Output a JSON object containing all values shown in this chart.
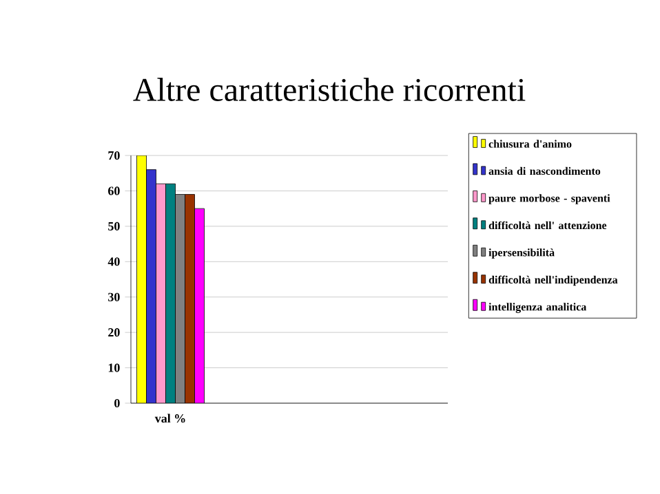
{
  "chart_data": {
    "type": "bar",
    "title": "Altre caratteristiche ricorrenti",
    "categories": [
      "val %",
      null,
      null,
      null
    ],
    "series": [
      {
        "name": "chiusura d'animo",
        "color": "#ffff00",
        "values": [
          70,
          null,
          null,
          null
        ]
      },
      {
        "name": "ansia di nascondimento",
        "color": "#3333cc",
        "values": [
          66,
          null,
          null,
          null
        ]
      },
      {
        "name": "paure morbose - spaventi",
        "color": "#ff99cc",
        "values": [
          62,
          null,
          null,
          null
        ]
      },
      {
        "name": "difficoltà nell' attenzione",
        "color": "#008080",
        "values": [
          62,
          null,
          null,
          null
        ]
      },
      {
        "name": "ipersensibilità",
        "color": "#808080",
        "values": [
          59,
          null,
          null,
          null
        ]
      },
      {
        "name": "difficoltà nell'indipendenza",
        "color": "#993300",
        "values": [
          59,
          null,
          null,
          null
        ]
      },
      {
        "name": "intelligenza analitica",
        "color": "#ff00ff",
        "values": [
          55,
          null,
          null,
          null
        ]
      }
    ],
    "ylim": [
      0,
      70
    ],
    "yticks": [
      0,
      10,
      20,
      30,
      40,
      50,
      60,
      70
    ],
    "grid": "y",
    "legend": "right"
  }
}
